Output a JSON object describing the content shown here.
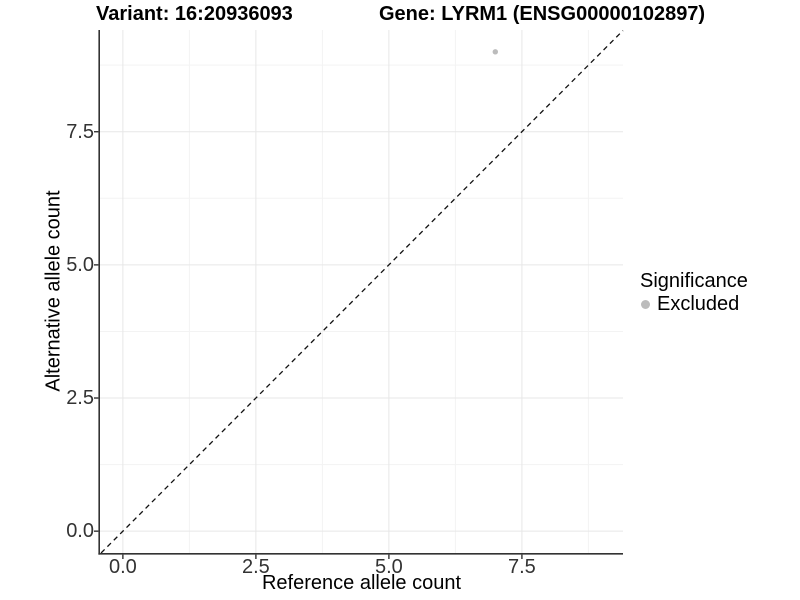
{
  "title": {
    "variant": "Variant: 16:20936093",
    "gene": "Gene: LYRM1 (ENSG00000102897)"
  },
  "chart_data": {
    "type": "scatter",
    "title": "Variant: 16:20936093   Gene: LYRM1 (ENSG00000102897)",
    "xlabel": "Reference allele count",
    "ylabel": "Alternative allele count",
    "xlim": [
      -0.43,
      9.4
    ],
    "ylim": [
      -0.41,
      9.41
    ],
    "xticks": [
      0,
      2.5,
      5,
      7.5
    ],
    "xtick_labels": [
      "0.0",
      "2.5",
      "5.0",
      "7.5"
    ],
    "yticks": [
      0,
      2.5,
      5,
      7.5
    ],
    "ytick_labels": [
      "0.0",
      "2.5",
      "5.0",
      "7.5"
    ],
    "minor_xticks": [
      1.25,
      3.75,
      6.25,
      8.75
    ],
    "minor_yticks": [
      1.25,
      3.75,
      6.25,
      8.75
    ],
    "grid": true,
    "series": [
      {
        "name": "Excluded",
        "color": "#bcbcbc",
        "points": [
          {
            "x": 7,
            "y": 9
          }
        ]
      }
    ],
    "reference_line": {
      "kind": "identity",
      "slope": 1,
      "intercept": 0,
      "style": "dashed",
      "color": "#111111"
    },
    "legend": {
      "title": "Significance",
      "position": "right",
      "entries": [
        {
          "label": "Excluded",
          "color": "#bcbcbc"
        }
      ]
    }
  },
  "colors": {
    "axis_line": "#333333",
    "major_grid": "#e7e7e7",
    "minor_grid": "#f3f3f3",
    "point": "#bcbcbc"
  }
}
